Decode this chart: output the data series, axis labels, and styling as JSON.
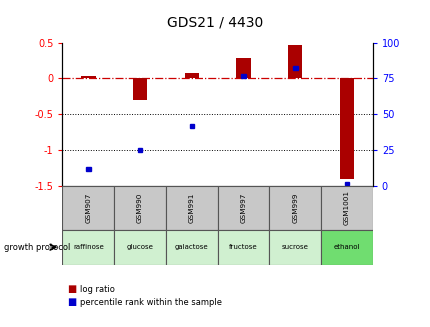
{
  "title": "GDS21 / 4430",
  "samples": [
    "GSM907",
    "GSM990",
    "GSM991",
    "GSM997",
    "GSM999",
    "GSM1001"
  ],
  "protocols": [
    "raffinose",
    "glucose",
    "galactose",
    "fructose",
    "sucrose",
    "ethanol"
  ],
  "log_ratio": [
    0.04,
    -0.3,
    0.07,
    0.28,
    0.46,
    -1.4
  ],
  "percentile_rank": [
    12,
    25,
    42,
    77,
    82,
    2
  ],
  "ylim_left": [
    -1.5,
    0.5
  ],
  "ylim_right": [
    0,
    100
  ],
  "left_ticks": [
    -1.5,
    -1.0,
    -0.5,
    0.0,
    0.5
  ],
  "right_ticks": [
    0,
    25,
    50,
    75,
    100
  ],
  "bar_color": "#aa0000",
  "dot_color": "#0000cc",
  "hline_color": "#cc0000",
  "dotline_ticks": [
    -0.5,
    -1.0
  ],
  "bg_color": "#ffffff",
  "sample_bg": "#c8c8c8",
  "protocol_colors": [
    "#d0f0d0",
    "#d0f0d0",
    "#d0f0d0",
    "#d0f0d0",
    "#d0f0d0",
    "#70dd70"
  ],
  "legend_log_ratio": "log ratio",
  "legend_percentile": "percentile rank within the sample",
  "growth_protocol_label": "growth protocol"
}
